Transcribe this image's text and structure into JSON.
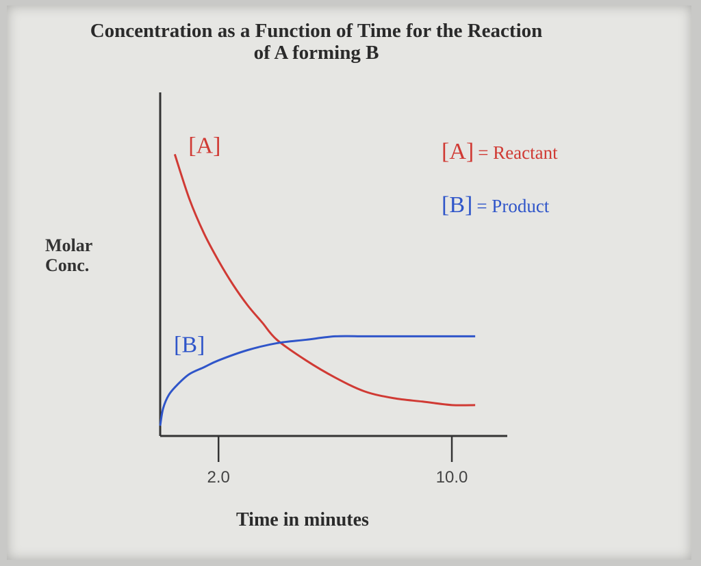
{
  "chart_data": {
    "type": "line",
    "title": "Concentration as a Function of Time for the Reaction of A forming B",
    "title_lines": [
      "Concentration as a Function of Time for the Reaction",
      "of A forming B"
    ],
    "xlabel": "Time in minutes",
    "ylabel_lines": [
      "Molar",
      "Conc."
    ],
    "x_ticks": [
      2.0,
      10.0
    ],
    "x_tick_labels": [
      "2.0",
      "10.0"
    ],
    "xlim": [
      0,
      11.9
    ],
    "ylim": [
      0,
      1
    ],
    "grid": false,
    "legend_position": "top-right",
    "legend": [
      {
        "bracket": "[A]",
        "text": "= Reactant",
        "color": "#d03a34"
      },
      {
        "bracket": "[B]",
        "text": "= Product",
        "color": "#2f55c9"
      }
    ],
    "series": [
      {
        "name": "[A]",
        "color": "#d03a34",
        "x": [
          0.5,
          1.0,
          1.5,
          2.0,
          2.5,
          3.0,
          3.5,
          4.0,
          5.0,
          6.0,
          7.0,
          8.0,
          9.0,
          10.0,
          10.8
        ],
        "y": [
          0.82,
          0.69,
          0.59,
          0.51,
          0.44,
          0.38,
          0.33,
          0.28,
          0.22,
          0.17,
          0.13,
          0.11,
          0.1,
          0.09,
          0.09
        ]
      },
      {
        "name": "[B]",
        "color": "#2f55c9",
        "x": [
          0.0,
          0.1,
          0.3,
          0.6,
          1.0,
          1.5,
          2.0,
          3.0,
          4.0,
          5.0,
          6.0,
          7.0,
          8.0,
          9.0,
          10.0,
          10.8
        ],
        "y": [
          0.03,
          0.08,
          0.12,
          0.15,
          0.18,
          0.2,
          0.22,
          0.25,
          0.27,
          0.28,
          0.29,
          0.29,
          0.29,
          0.29,
          0.29,
          0.29
        ]
      }
    ]
  }
}
